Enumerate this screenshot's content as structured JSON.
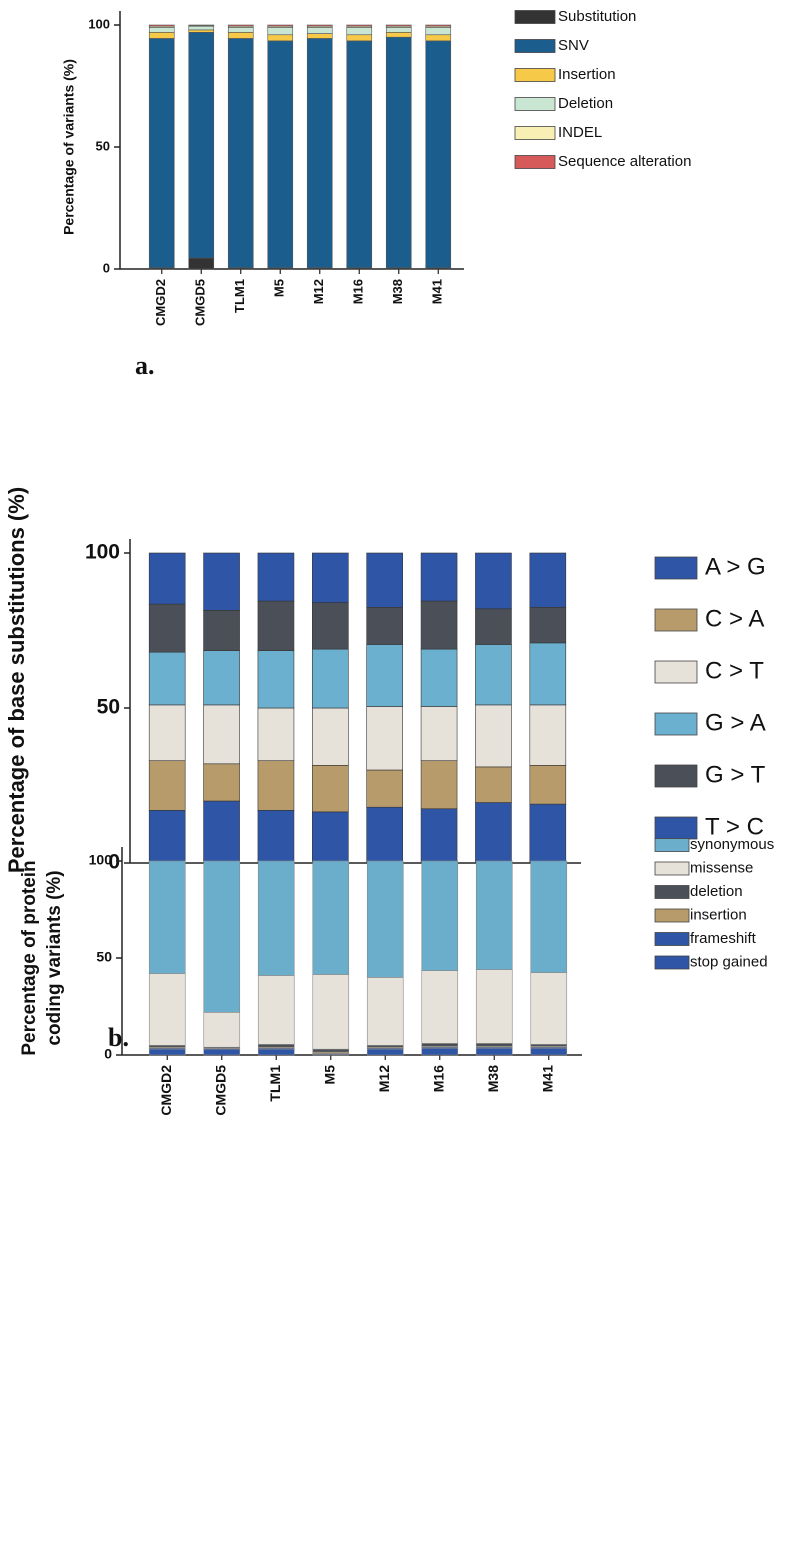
{
  "chart_data": [
    {
      "type": "stacked-bar",
      "panel_label": "a.",
      "ylabel": [
        "Percentage of variants (%)"
      ],
      "categories": [
        "CMGD2",
        "CMGD5",
        "TLM1",
        "M5",
        "M12",
        "M16",
        "M38",
        "M41"
      ],
      "ylim": [
        0,
        100
      ],
      "yticks": [
        0,
        50,
        100
      ],
      "legend_reversed": false,
      "series": [
        {
          "name": "Substitution",
          "color": "#333333",
          "values": [
            0.5,
            4.5,
            0.5,
            0.5,
            0.5,
            0.5,
            0.5,
            0.5
          ]
        },
        {
          "name": "SNV",
          "color": "#1b5e8e",
          "values": [
            94,
            92.5,
            94,
            93,
            94,
            93,
            94.5,
            93
          ]
        },
        {
          "name": "Insertion",
          "color": "#f7c948",
          "values": [
            2.5,
            1,
            2.5,
            2.5,
            2,
            2.5,
            2,
            2.5
          ]
        },
        {
          "name": "Deletion",
          "color": "#c9e6d3",
          "values": [
            2,
            1.5,
            2,
            3,
            2.5,
            3,
            2,
            3
          ]
        },
        {
          "name": "INDEL",
          "color": "#f8efb5",
          "values": [
            0.5,
            0.3,
            0.5,
            0.5,
            0.5,
            0.5,
            0.5,
            0.5
          ]
        },
        {
          "name": "Sequence alteration",
          "color": "#d65a5a",
          "values": [
            0.5,
            0.2,
            0.5,
            0.5,
            0.5,
            0.5,
            0.5,
            0.5
          ]
        }
      ]
    },
    {
      "type": "stacked-bar",
      "panel_label": "b.",
      "ylabel": [
        "Percentage of base substitutions (%)"
      ],
      "categories": [
        "CMGD2",
        "CMGD5",
        "TLM1",
        "M5",
        "M12",
        "M16",
        "M38",
        "M41"
      ],
      "ylim": [
        0,
        100
      ],
      "yticks": [
        0,
        50,
        100
      ],
      "legend_reversed": false,
      "series": [
        {
          "name": "A > G",
          "color": "#2f56a6",
          "values": [
            17,
            20,
            17,
            16.5,
            18,
            17.5,
            19.5,
            19
          ]
        },
        {
          "name": "C > A",
          "color": "#b89b6a",
          "values": [
            16,
            12,
            16,
            15,
            12,
            15.5,
            11.5,
            12.5
          ]
        },
        {
          "name": "C > T",
          "color": "#e6e2da",
          "values": [
            18,
            19,
            17,
            18.5,
            20.5,
            17.5,
            20,
            19.5
          ]
        },
        {
          "name": "G > A",
          "color": "#6bb0cf",
          "values": [
            17,
            17.5,
            18.5,
            19,
            20,
            18.5,
            19.5,
            20
          ]
        },
        {
          "name": "G > T",
          "color": "#4b4f57",
          "values": [
            15.5,
            13,
            16,
            15,
            12,
            15.5,
            11.5,
            11.5
          ]
        },
        {
          "name": "T > C",
          "color": "#2f56a6",
          "values": [
            16.5,
            18.5,
            15.5,
            16,
            17.5,
            15.5,
            18,
            17.5
          ]
        }
      ]
    },
    {
      "type": "stacked-bar",
      "ylabel": [
        "Percentage of protein",
        "coding variants (%)"
      ],
      "categories": [
        "CMGD2",
        "CMGD5",
        "TLM1",
        "M5",
        "M12",
        "M16",
        "M38",
        "M41"
      ],
      "ylim": [
        0,
        100
      ],
      "yticks": [
        0,
        50,
        100
      ],
      "legend_reversed": true,
      "series": [
        {
          "name": "stop gained",
          "color": "#2f56a6",
          "values": [
            3,
            3,
            3,
            0.5,
            3,
            3.5,
            3.5,
            3.5
          ]
        },
        {
          "name": "frameshift",
          "color": "#2f56a6",
          "values": [
            0.5,
            0.3,
            0.5,
            0.3,
            0.5,
            0.5,
            0.5,
            0.5
          ]
        },
        {
          "name": "insertion",
          "color": "#b89b6a",
          "values": [
            0.5,
            0.2,
            0.5,
            0.7,
            0.5,
            0.5,
            0.5,
            0.5
          ]
        },
        {
          "name": "deletion",
          "color": "#4b4f57",
          "values": [
            1,
            0.5,
            1.5,
            1.5,
            1,
            1.5,
            1.5,
            1
          ]
        },
        {
          "name": "missense",
          "color": "#e6e2da",
          "values": [
            37,
            18,
            35.5,
            38.5,
            35,
            37.5,
            38,
            37
          ]
        },
        {
          "name": "synonymous",
          "color": "#6aaecb",
          "values": [
            58,
            78,
            59,
            58.5,
            60,
            56.5,
            56,
            57.5
          ]
        }
      ]
    }
  ]
}
